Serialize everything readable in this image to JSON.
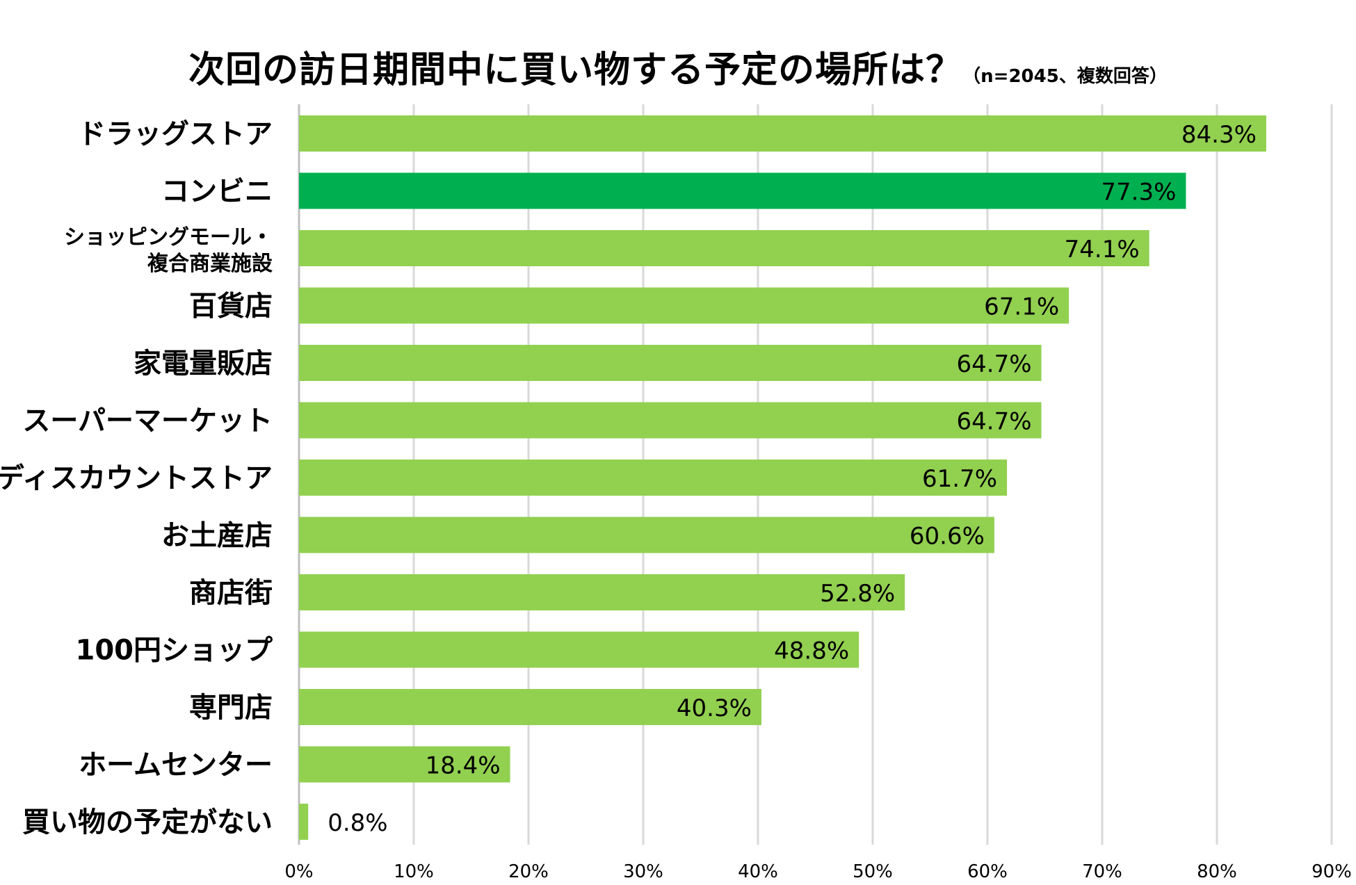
{
  "chart_data": {
    "type": "bar",
    "orientation": "horizontal",
    "title": "次回の訪日期間中に買い物する予定の場所は？",
    "subtitle": "（n=2045、複数回答）",
    "categories": [
      "ドラッグストア",
      "コンビニ",
      [
        "ショッピングモール・",
        "複合商業施設"
      ],
      "百貨店",
      "家電量販店",
      "スーパーマーケット",
      "ディスカウントストア",
      "お土産店",
      "商店街",
      "100円ショップ",
      "専門店",
      "ホームセンター",
      "買い物の予定がない"
    ],
    "values": [
      84.3,
      77.3,
      74.1,
      67.1,
      64.7,
      64.7,
      61.7,
      60.6,
      52.8,
      48.8,
      40.3,
      18.4,
      0.8
    ],
    "value_labels": [
      "84.3%",
      "77.3%",
      "74.1%",
      "67.1%",
      "64.7%",
      "64.7%",
      "61.7%",
      "60.6%",
      "52.8%",
      "48.8%",
      "40.3%",
      "18.4%",
      "0.8%"
    ],
    "highlight_index": 1,
    "xlim": [
      0,
      90
    ],
    "x_ticks": [
      0,
      10,
      20,
      30,
      40,
      50,
      60,
      70,
      80,
      90
    ],
    "x_tick_labels": [
      "0%",
      "10%",
      "20%",
      "30%",
      "40%",
      "50%",
      "60%",
      "70%",
      "80%",
      "90%"
    ],
    "grid": "vertical",
    "colors": {
      "bar": "#92d050",
      "highlight": "#00b050",
      "grid": "#d9d9d9"
    }
  }
}
